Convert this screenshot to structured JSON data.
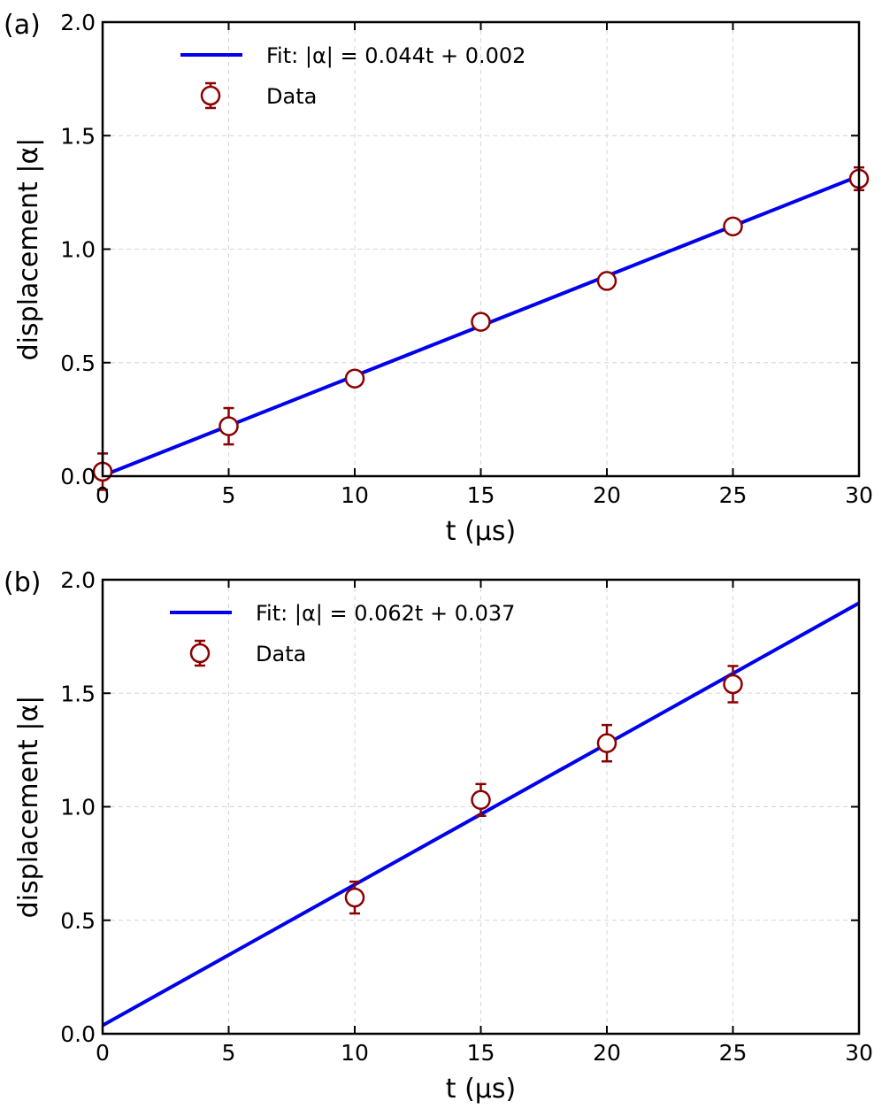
{
  "chart_data": [
    {
      "type": "scatter",
      "panel_label": "(a)",
      "xlabel": "t (µs)",
      "ylabel": "displacement |α|",
      "xlim": [
        0,
        30
      ],
      "ylim": [
        0,
        2.0
      ],
      "xticks": [
        "0",
        "5",
        "10",
        "15",
        "20",
        "25",
        "30"
      ],
      "yticks": [
        "0.0",
        "0.5",
        "1.0",
        "1.5",
        "2.0"
      ],
      "grid": true,
      "legend_position": "top-left",
      "fit": {
        "label": "Fit: |α| = 0.044t + 0.002",
        "slope": 0.044,
        "intercept": 0.002,
        "color": "#0000ee"
      },
      "series": [
        {
          "name": "Data",
          "color": "#8b0000",
          "points": [
            {
              "x": 0,
              "y": 0.02,
              "err": 0.08
            },
            {
              "x": 5,
              "y": 0.22,
              "err": 0.08
            },
            {
              "x": 10,
              "y": 0.43,
              "err": 0.02
            },
            {
              "x": 15,
              "y": 0.68,
              "err": 0.02
            },
            {
              "x": 20,
              "y": 0.86,
              "err": 0.02
            },
            {
              "x": 25,
              "y": 1.1,
              "err": 0.03
            },
            {
              "x": 30,
              "y": 1.31,
              "err": 0.05
            }
          ]
        }
      ]
    },
    {
      "type": "scatter",
      "panel_label": "(b)",
      "xlabel": "t (µs)",
      "ylabel": "displacement |α|",
      "xlim": [
        0,
        30
      ],
      "ylim": [
        0,
        2.0
      ],
      "xticks": [
        "0",
        "5",
        "10",
        "15",
        "20",
        "25",
        "30"
      ],
      "yticks": [
        "0.0",
        "0.5",
        "1.0",
        "1.5",
        "2.0"
      ],
      "grid": true,
      "legend_position": "top-left",
      "fit": {
        "label": "Fit: |α| = 0.062t + 0.037",
        "slope": 0.062,
        "intercept": 0.037,
        "color": "#0000ee"
      },
      "series": [
        {
          "name": "Data",
          "color": "#8b0000",
          "points": [
            {
              "x": 10,
              "y": 0.6,
              "err": 0.07
            },
            {
              "x": 15,
              "y": 1.03,
              "err": 0.07
            },
            {
              "x": 20,
              "y": 1.28,
              "err": 0.08
            },
            {
              "x": 25,
              "y": 1.54,
              "err": 0.08
            }
          ]
        }
      ]
    }
  ]
}
